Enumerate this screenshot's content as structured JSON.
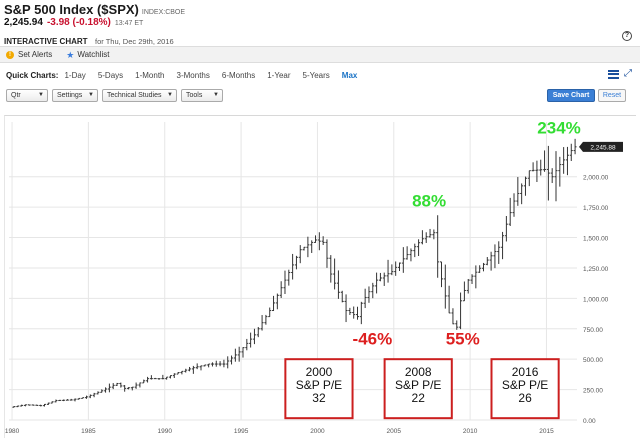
{
  "header": {
    "title": "S&P 500 Index ($SPX)",
    "exchange": "INDEX:CBOE",
    "price": "2,245.94",
    "change": "-3.98 (-0.18%)",
    "time": "13:47 ET",
    "interactive_label": "INTERACTIVE CHART",
    "chart_for": "for Thu, Dec 29th, 2016",
    "help_glyph": "?"
  },
  "alerts": {
    "set_alerts": "Set Alerts",
    "set_alerts_glyph": "!",
    "watchlist": "Watchlist",
    "watchlist_glyph": "★"
  },
  "quick_charts": {
    "label": "Quick Charts:",
    "items": [
      "1-Day",
      "5-Days",
      "1-Month",
      "3-Months",
      "6-Months",
      "1-Year",
      "5-Years",
      "Max"
    ],
    "active": "Max",
    "expand_glyph": "⤢"
  },
  "toolbar": {
    "period": "Qtr",
    "settings": "Settings",
    "studies": "Technical Studies",
    "tools": "Tools",
    "save": "Save Chart",
    "reset": "Reset",
    "caret": "▼"
  },
  "chart_data": {
    "type": "ohlc",
    "title": "",
    "period": "quarterly",
    "x_tick_labels": [
      "1980",
      "1985",
      "1990",
      "1995",
      "2000",
      "2005",
      "2010",
      "2015"
    ],
    "x_ticks": [
      1980,
      1985,
      1990,
      1995,
      2000,
      2005,
      2010,
      2015
    ],
    "xlim": [
      1979.8,
      2017.0
    ],
    "y_tick_labels": [
      "2,000.00",
      "1,750.00",
      "1,500.00",
      "1,250.00",
      "1,000.00",
      "750.00",
      "500.00",
      "250.00",
      "0.00"
    ],
    "y_ticks": [
      2000,
      1750,
      1500,
      1250,
      1000,
      750,
      500,
      250,
      0
    ],
    "ylim": [
      0,
      2450
    ],
    "last_price_label": "2,245.88",
    "last_price": 2245.88,
    "grid": true,
    "series": [
      {
        "points": [
          [
            1980,
            105
          ],
          [
            1981,
            125
          ],
          [
            1982,
            118
          ],
          [
            1983,
            160
          ],
          [
            1984,
            165
          ],
          [
            1985,
            190
          ],
          [
            1986,
            240
          ],
          [
            1987,
            300
          ],
          [
            1987.5,
            260
          ],
          [
            1988,
            270
          ],
          [
            1989,
            340
          ],
          [
            1990,
            340
          ],
          [
            1991,
            390
          ],
          [
            1992,
            430
          ],
          [
            1993,
            460
          ],
          [
            1994,
            460
          ],
          [
            1995,
            560
          ],
          [
            1996,
            700
          ],
          [
            1997,
            900
          ],
          [
            1998,
            1150
          ],
          [
            1999,
            1400
          ],
          [
            2000,
            1480
          ],
          [
            2000.5,
            1460
          ],
          [
            2001,
            1200
          ],
          [
            2002,
            900
          ],
          [
            2002.75,
            850
          ],
          [
            2003,
            960
          ],
          [
            2004,
            1150
          ],
          [
            2005,
            1220
          ],
          [
            2006,
            1360
          ],
          [
            2007,
            1490
          ],
          [
            2007.75,
            1540
          ],
          [
            2008,
            1300
          ],
          [
            2008.75,
            880
          ],
          [
            2009.2,
            720
          ],
          [
            2009.5,
            980
          ],
          [
            2010,
            1150
          ],
          [
            2011,
            1280
          ],
          [
            2012,
            1420
          ],
          [
            2013,
            1800
          ],
          [
            2014,
            2050
          ],
          [
            2015,
            2060
          ],
          [
            2015.5,
            2000
          ],
          [
            2016,
            2100
          ],
          [
            2016.95,
            2245.88
          ]
        ]
      }
    ],
    "annotations": [
      {
        "text": "234%",
        "x": 2014.4,
        "y": 2355,
        "color": "#33dd33"
      },
      {
        "text": "88%",
        "x": 2006.2,
        "y": 1755,
        "color": "#33dd33"
      },
      {
        "text": "-46%",
        "x": 2002.3,
        "y": 620,
        "color": "#dd1f1f"
      },
      {
        "text": "55%",
        "x": 2008.4,
        "y": 620,
        "color": "#dd1f1f"
      }
    ],
    "pe_boxes": [
      {
        "lines": [
          "2000",
          "S&P P/E",
          "32"
        ],
        "x0": 1997.9,
        "x1": 2002.3,
        "y0": 15,
        "y1": 500
      },
      {
        "lines": [
          "2008",
          "S&P P/E",
          "22"
        ],
        "x0": 2004.4,
        "x1": 2008.8,
        "y0": 15,
        "y1": 500
      },
      {
        "lines": [
          "2016",
          "S&P P/E",
          "26"
        ],
        "x0": 2011.4,
        "x1": 2015.8,
        "y0": 15,
        "y1": 500
      }
    ],
    "colors": {
      "bars": "#333333",
      "grid": "#e6e6e6",
      "pe_border": "#cc1f1f",
      "axis_text": "#555555"
    }
  }
}
